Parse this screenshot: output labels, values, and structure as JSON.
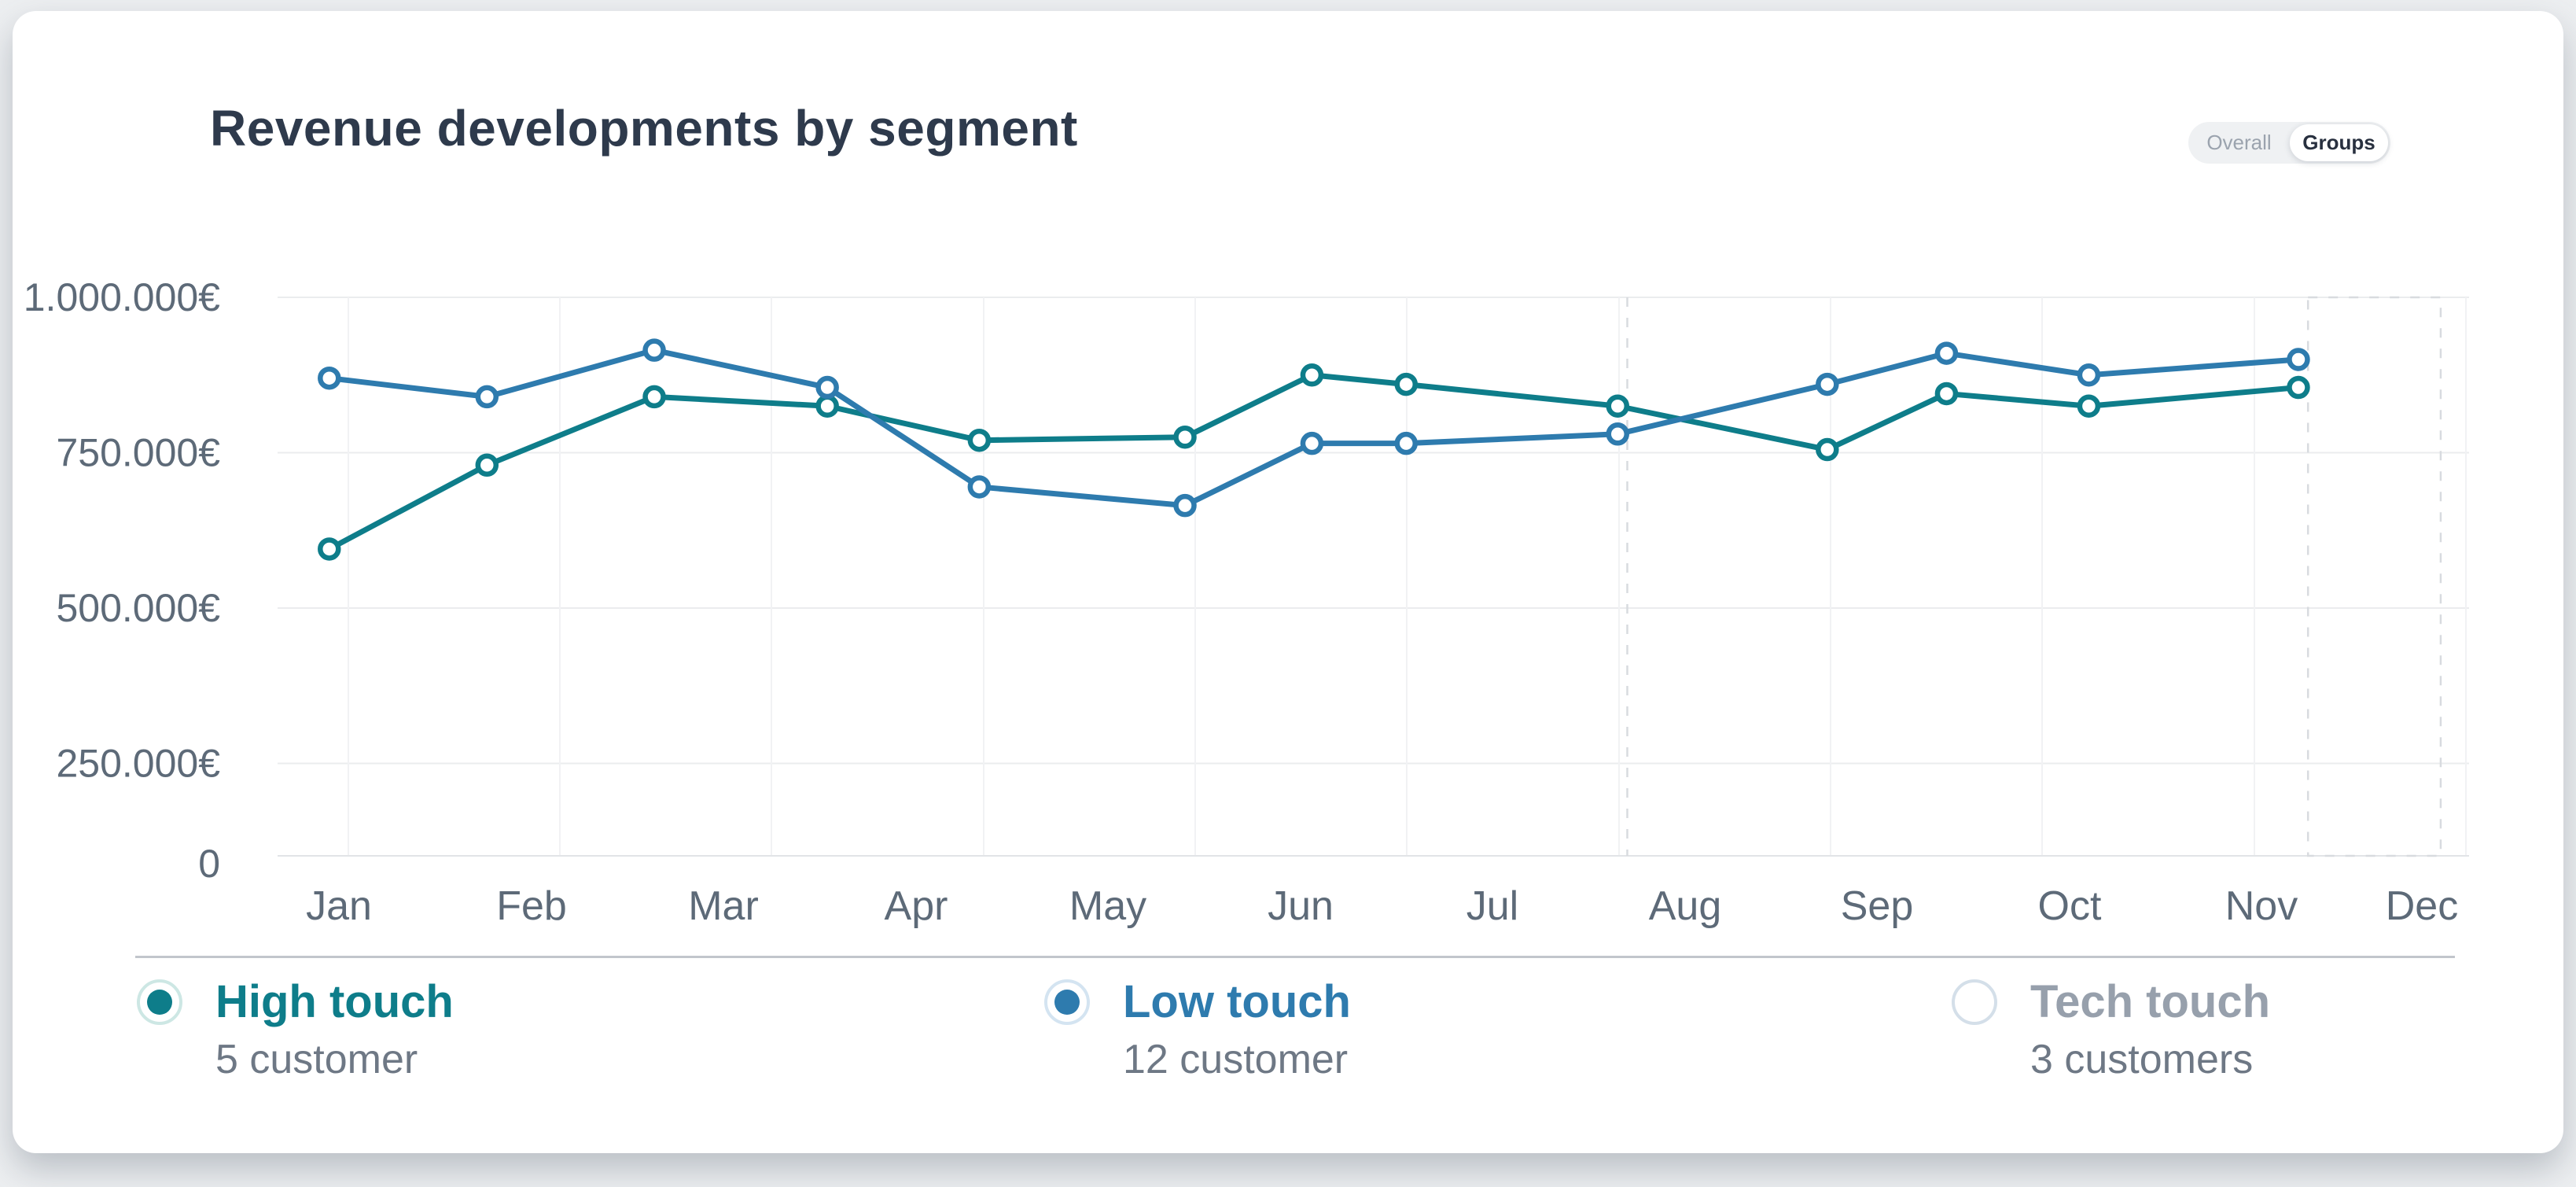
{
  "page": {
    "title": "Revenue developments by segment",
    "toggle": {
      "overall": "Overall",
      "groups": "Groups",
      "selected": "Groups"
    }
  },
  "colors": {
    "high_touch": "#0E7D8A",
    "low_touch": "#2E7BAE",
    "inactive_label": "#97A0AC",
    "ring_high": "#CDE7E4",
    "ring_low": "#D4E4F1",
    "ring_inactive": "#D4DFE9",
    "axis_text": "#5d6a78",
    "grid_h": "#ebecee",
    "grid_v": "#f1f2f4",
    "axis_line": "#e2e4e7",
    "dashed": "#d8dbdf"
  },
  "chart_data": {
    "type": "line",
    "title": "Revenue developments by segment",
    "x_axis": {
      "labels": [
        "Jan",
        "Feb",
        "Mar",
        "Apr",
        "May",
        "Jun",
        "Jul",
        "Aug",
        "Sep",
        "Oct",
        "Nov",
        "Dec"
      ]
    },
    "y_axis": {
      "labels": [
        "1.000.000€",
        "750.000€",
        "500.000€",
        "250.000€",
        "0"
      ],
      "values": [
        1000000,
        750000,
        500000,
        250000,
        0
      ]
    },
    "ylim": [
      0,
      1000000
    ],
    "grid": true,
    "legend_position": "bottom",
    "series": [
      {
        "name": "High touch",
        "customers": "5 customer",
        "color": "#0E7D8A",
        "x_months": [
          -0.05,
          0.77,
          1.64,
          2.54,
          3.33,
          4.4,
          5.06,
          5.55,
          6.65,
          7.74,
          8.36,
          9.1,
          10.19
        ],
        "values": [
          595000,
          730000,
          840000,
          825000,
          770000,
          775000,
          875000,
          860000,
          825000,
          755000,
          845000,
          825000,
          855000
        ]
      },
      {
        "name": "Low touch",
        "customers": "12 customer",
        "color": "#2E7BAE",
        "x_months": [
          -0.05,
          0.77,
          1.64,
          2.54,
          3.33,
          4.4,
          5.06,
          5.55,
          6.65,
          7.74,
          8.36,
          9.1,
          10.19
        ],
        "values": [
          870000,
          840000,
          915000,
          855000,
          695000,
          665000,
          765000,
          765000,
          780000,
          860000,
          910000,
          875000,
          900000
        ]
      }
    ],
    "inactive_series": {
      "name": "Tech touch",
      "customers": "3 customers"
    },
    "annotations": {
      "dashed_vline_month": 6.7,
      "dashed_box_months": [
        10.24,
        10.93
      ]
    }
  }
}
